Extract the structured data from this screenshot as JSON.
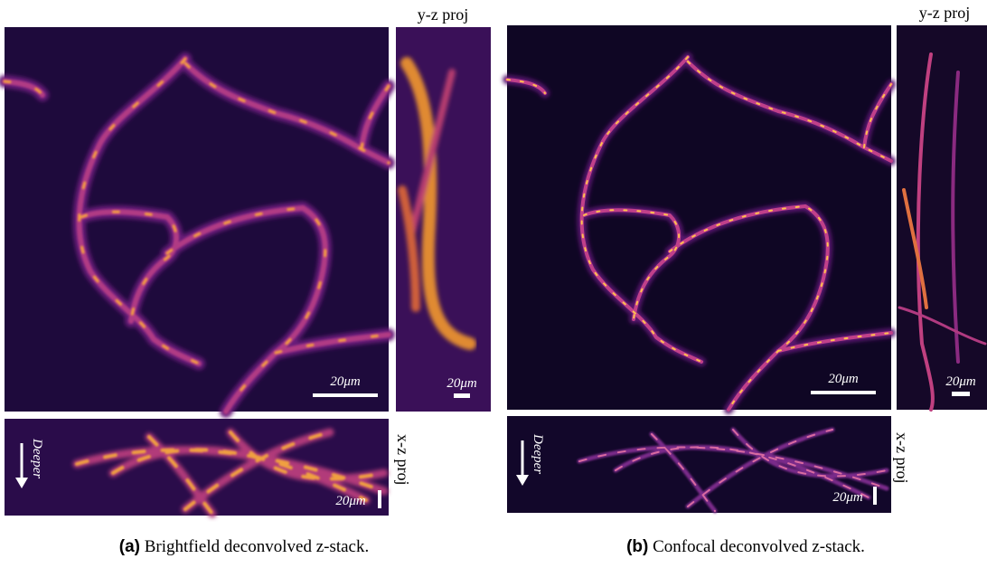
{
  "panels": [
    {
      "label": "(a)",
      "caption": "Brightfield deconvolved z-stack.",
      "yz_label": "y-z proj",
      "xz_label": "x-z proj",
      "depth_label": "Deeper",
      "scale_labels": [
        "20μm",
        "20μm",
        "20μm"
      ]
    },
    {
      "label": "(b)",
      "caption": "Confocal deconvolved z-stack.",
      "yz_label": "y-z proj",
      "xz_label": "x-z proj",
      "depth_label": "Deeper",
      "scale_labels": [
        "20μm",
        "20μm",
        "20μm"
      ]
    }
  ]
}
